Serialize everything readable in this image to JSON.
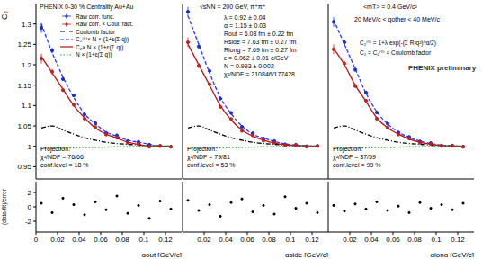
{
  "chart_data": [
    {
      "type": "scatter",
      "title": "PHENIX 0-30 % Centrality Au+Au",
      "y_label": "C₂",
      "x_label": "qout [GeV/c]",
      "legend": "top",
      "x": [
        0.005,
        0.015,
        0.025,
        0.035,
        0.045,
        0.055,
        0.065,
        0.075,
        0.085,
        0.095,
        0.105,
        0.115,
        0.125
      ],
      "xlim": [
        0,
        0.135
      ],
      "xticks": [
        0,
        0.02,
        0.04,
        0.06,
        0.08,
        0.1,
        0.12
      ],
      "ylim": [
        0.92,
        1.35
      ],
      "yticks": [
        0.95,
        1,
        1.05,
        1.1,
        1.15,
        1.2,
        1.25,
        1.3
      ],
      "series": [
        {
          "name": "Raw corr. func.",
          "type": "scatter",
          "marker": "circle",
          "color": "#1a2ed6",
          "values": [
            1.29,
            1.235,
            1.165,
            1.125,
            1.078,
            1.057,
            1.033,
            1.027,
            1.013,
            1.011,
            1.004,
            1.001,
            0.999
          ],
          "errors": [
            0.012,
            0.007,
            0.005,
            0.004,
            0.003,
            0.003,
            0.003,
            0.002,
            0.002,
            0.002,
            0.002,
            0.002,
            0.002
          ]
        },
        {
          "name": "Raw corr. × Coul. fact.",
          "type": "scatter",
          "marker": "circle",
          "color": "#c81e1e",
          "values": [
            1.215,
            1.183,
            1.138,
            1.102,
            1.068,
            1.047,
            1.029,
            1.021,
            1.009,
            1.006,
            0.999,
            1.001,
            0.999
          ],
          "errors": [
            0.012,
            0.007,
            0.005,
            0.004,
            0.003,
            0.003,
            0.003,
            0.002,
            0.002,
            0.002,
            0.002,
            0.002,
            0.002
          ]
        },
        {
          "name": "Coulomb factor",
          "type": "line",
          "line_style": "dash-dot",
          "color": "#000000",
          "values": [
            1.045,
            1.05,
            1.04,
            1.03,
            1.021,
            1.015,
            1.01,
            1.007,
            1.005,
            1.003,
            1.002,
            1.001,
            1.0
          ]
        },
        {
          "name": "C₂⁽⁰⁾× N × (1+ε(Σ q))",
          "type": "line",
          "line_style": "dashed",
          "color": "#2a3cff",
          "values": [
            1.3,
            1.23,
            1.17,
            1.12,
            1.08,
            1.055,
            1.035,
            1.025,
            1.015,
            1.01,
            1.005,
            1.0,
            1.0
          ]
        },
        {
          "name": "C₂× N × (1+ε(Σ q))",
          "type": "line",
          "line_style": "solid",
          "color": "#b41414",
          "values": [
            1.22,
            1.18,
            1.14,
            1.1,
            1.07,
            1.045,
            1.03,
            1.02,
            1.01,
            1.005,
            1.0,
            1.0,
            1.0
          ]
        },
        {
          "name": "N × (1+ε(Σ q))",
          "type": "line",
          "line_style": "dotted",
          "color": "#2ca02c",
          "values": [
            0.994,
            0.995,
            0.995,
            0.996,
            0.997,
            0.997,
            0.998,
            0.999,
            0.999,
            1.0,
            1.001,
            1.001,
            1.002
          ]
        }
      ],
      "projection": [
        "Projection:",
        "χ²/NDF = 76/66",
        "conf.level = 18 %"
      ],
      "residuals": {
        "y_label": "(data-fit)/error",
        "color": "#000000",
        "ylim": [
          -3.5,
          3.5
        ],
        "yticks": [
          -2,
          0,
          2
        ],
        "values": [
          0.5,
          -0.8,
          1.2,
          0.3,
          -1.1,
          0.7,
          -0.4,
          1.5,
          -0.9,
          0.2,
          -1.6,
          0.8,
          -0.3
        ]
      }
    },
    {
      "type": "scatter",
      "title": "√sNN = 200 GeV, π⁺π⁺",
      "x_label": "qside [GeV/c]",
      "tick_labels": "x",
      "x": [
        0.005,
        0.015,
        0.025,
        0.035,
        0.045,
        0.055,
        0.065,
        0.075,
        0.085,
        0.095,
        0.105,
        0.115,
        0.125
      ],
      "xlim": [
        0,
        0.135
      ],
      "xticks": [
        0,
        0.02,
        0.04,
        0.06,
        0.08,
        0.1,
        0.12
      ],
      "ylim": [
        0.92,
        1.35
      ],
      "yticks": [
        0.95,
        1,
        1.05,
        1.1,
        1.15,
        1.2,
        1.25,
        1.3
      ],
      "series": [
        {
          "name": "Raw corr. func.",
          "type": "scatter",
          "marker": "circle",
          "color": "#1a2ed6",
          "values": [
            1.33,
            1.245,
            1.185,
            1.117,
            1.082,
            1.048,
            1.032,
            1.019,
            1.013,
            1.005,
            1.004,
            1.0,
            1.001
          ],
          "errors": [
            0.012,
            0.007,
            0.005,
            0.004,
            0.003,
            0.003,
            0.003,
            0.002,
            0.002,
            0.002,
            0.002,
            0.002,
            0.002
          ]
        },
        {
          "name": "Raw corr. × Coul. fact.",
          "type": "scatter",
          "marker": "circle",
          "color": "#c81e1e",
          "values": [
            1.255,
            1.198,
            1.152,
            1.097,
            1.067,
            1.038,
            1.027,
            1.014,
            1.009,
            1.003,
            1.003,
            0.999,
            1.001
          ],
          "errors": [
            0.012,
            0.007,
            0.005,
            0.004,
            0.003,
            0.003,
            0.003,
            0.002,
            0.002,
            0.002,
            0.002,
            0.002,
            0.002
          ]
        },
        {
          "name": "Coulomb factor",
          "type": "line",
          "line_style": "dash-dot",
          "color": "#000000",
          "values": [
            1.045,
            1.05,
            1.04,
            1.03,
            1.021,
            1.015,
            1.01,
            1.007,
            1.005,
            1.003,
            1.002,
            1.001,
            1.0
          ]
        },
        {
          "name": "C₂⁽⁰⁾× N × (1+ε(Σ q))",
          "type": "line",
          "line_style": "dashed",
          "color": "#2a3cff",
          "values": [
            1.32,
            1.25,
            1.18,
            1.12,
            1.08,
            1.05,
            1.03,
            1.02,
            1.012,
            1.006,
            1.003,
            1.001,
            1.0
          ]
        },
        {
          "name": "C₂× N × (1+ε(Σ q))",
          "type": "line",
          "line_style": "solid",
          "color": "#b41414",
          "values": [
            1.25,
            1.2,
            1.15,
            1.1,
            1.065,
            1.04,
            1.025,
            1.015,
            1.008,
            1.004,
            1.002,
            1.0,
            1.0
          ]
        },
        {
          "name": "N × (1+ε(Σ q))",
          "type": "line",
          "line_style": "dotted",
          "color": "#2ca02c",
          "values": [
            0.994,
            0.995,
            0.995,
            0.996,
            0.997,
            0.997,
            0.998,
            0.999,
            0.999,
            1.0,
            1.001,
            1.001,
            1.002
          ]
        }
      ],
      "annotations": [
        "λ = 0.92 ± 0.04",
        "α = 1.15 ± 0.03",
        "Rout = 6.08 fm ± 0.22 fm",
        "Rside = 7.63 fm ± 0.27 fm",
        "Rlong = 7.69 fm ± 0.27 fm",
        "ε = 0.062 ± 0.01 c/GeV",
        "N = 0.993 ± 0.002",
        "χ²/NDF = 210846/177428"
      ],
      "projection": [
        "Projection:",
        "χ²/NDF = 79/81",
        "conf.level = 53 %"
      ],
      "residuals": {
        "color": "#000000",
        "ylim": [
          -3.5,
          3.5
        ],
        "yticks": [
          -2,
          0,
          2
        ],
        "values": [
          0.9,
          -0.5,
          0.3,
          -1.3,
          0.6,
          1.1,
          -0.7,
          0.2,
          -1.0,
          1.4,
          -0.2,
          0.5,
          -0.8
        ]
      }
    },
    {
      "type": "scatter",
      "title": "<mT> = 0.4 GeV/c²",
      "x_label": "qlong [GeV/c]",
      "tick_labels": "x",
      "x": [
        0.005,
        0.015,
        0.025,
        0.035,
        0.045,
        0.055,
        0.065,
        0.075,
        0.085,
        0.095,
        0.105,
        0.115,
        0.125
      ],
      "xlim": [
        0,
        0.135
      ],
      "xticks": [
        0,
        0.02,
        0.04,
        0.06,
        0.08,
        0.1,
        0.12
      ],
      "ylim": [
        0.92,
        1.35
      ],
      "yticks": [
        0.95,
        1,
        1.05,
        1.1,
        1.15,
        1.2,
        1.25,
        1.3
      ],
      "series": [
        {
          "name": "Raw corr. func.",
          "type": "scatter",
          "marker": "circle",
          "color": "#1a2ed6",
          "values": [
            1.305,
            1.255,
            1.188,
            1.132,
            1.083,
            1.056,
            1.034,
            1.023,
            1.012,
            1.008,
            1.002,
            1.002,
            0.999
          ],
          "errors": [
            0.012,
            0.007,
            0.005,
            0.004,
            0.003,
            0.003,
            0.003,
            0.002,
            0.002,
            0.002,
            0.002,
            0.002,
            0.002
          ]
        },
        {
          "name": "Raw corr. × Coul. fact.",
          "type": "scatter",
          "marker": "circle",
          "color": "#c81e1e",
          "values": [
            1.238,
            1.203,
            1.148,
            1.112,
            1.068,
            1.046,
            1.029,
            1.019,
            1.009,
            1.006,
            1.001,
            1.001,
            0.999
          ],
          "errors": [
            0.012,
            0.007,
            0.005,
            0.004,
            0.003,
            0.003,
            0.003,
            0.002,
            0.002,
            0.002,
            0.002,
            0.002,
            0.002
          ]
        },
        {
          "name": "Coulomb factor",
          "type": "line",
          "line_style": "dash-dot",
          "color": "#000000",
          "values": [
            1.045,
            1.05,
            1.04,
            1.03,
            1.021,
            1.015,
            1.01,
            1.007,
            1.005,
            1.003,
            1.002,
            1.001,
            1.0
          ]
        },
        {
          "name": "C₂⁽⁰⁾× N × (1+ε(Σ q))",
          "type": "line",
          "line_style": "dashed",
          "color": "#2a3cff",
          "values": [
            1.31,
            1.25,
            1.19,
            1.13,
            1.085,
            1.055,
            1.035,
            1.022,
            1.013,
            1.007,
            1.003,
            1.001,
            1.0
          ]
        },
        {
          "name": "C₂× N × (1+ε(Σ q))",
          "type": "line",
          "line_style": "solid",
          "color": "#b41414",
          "values": [
            1.24,
            1.2,
            1.15,
            1.11,
            1.07,
            1.045,
            1.03,
            1.018,
            1.01,
            1.005,
            1.002,
            1.0,
            1.0
          ]
        },
        {
          "name": "N × (1+ε(Σ q))",
          "type": "line",
          "line_style": "dotted",
          "color": "#2ca02c",
          "values": [
            0.994,
            0.995,
            0.995,
            0.996,
            0.997,
            0.997,
            0.998,
            0.999,
            0.999,
            1.0,
            1.001,
            1.001,
            1.002
          ]
        }
      ],
      "annotations": [
        "20 MeV/c < qother < 40 MeV/c",
        "C₂⁽⁰⁾ = 1+λ exp(-(Σ R²q²)^α/2)",
        "C₂ = C₂⁽⁰⁾ × Coulomb factor",
        "PHENIX preliminary"
      ],
      "projection": [
        "Projection:",
        "χ²/NDF = 37/59",
        "conf.level = 99 %"
      ],
      "residuals": {
        "color": "#000000",
        "ylim": [
          -3.5,
          3.5
        ],
        "yticks": [
          -2,
          0,
          2
        ],
        "values": [
          0.2,
          -0.6,
          0.4,
          -0.3,
          0.7,
          -0.5,
          0.1,
          -0.8,
          0.6,
          -0.2,
          0.3,
          -0.4,
          0.5
        ]
      }
    }
  ]
}
